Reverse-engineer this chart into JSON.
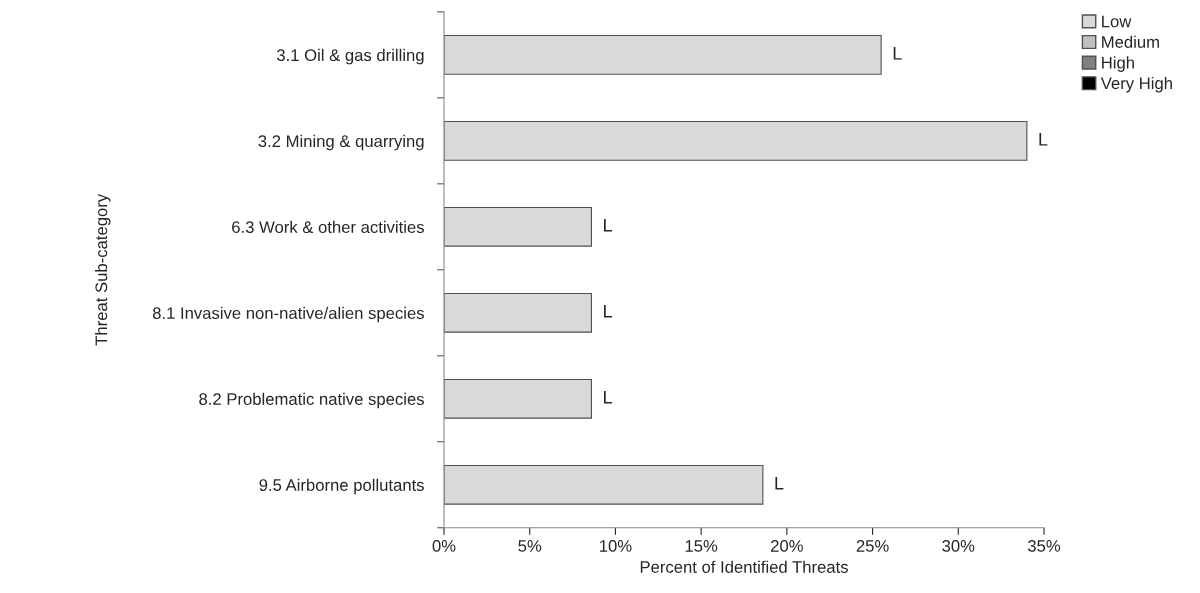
{
  "chart_data": {
    "type": "bar",
    "orientation": "horizontal",
    "categories": [
      "3.1 Oil & gas drilling",
      "3.2 Mining & quarrying",
      "6.3 Work & other activities",
      "8.1 Invasive non-native/alien species",
      "8.2 Problematic native species",
      "9.5 Airborne pollutants"
    ],
    "series": [
      {
        "name": "Low",
        "color": "#d9d9d9",
        "values": [
          25.5,
          34,
          8.6,
          8.6,
          8.6,
          18.6
        ],
        "value_labels": [
          "L",
          "L",
          "L",
          "L",
          "L",
          "L"
        ]
      },
      {
        "name": "Medium",
        "color": "#c0c0c0",
        "values": [
          null,
          null,
          null,
          null,
          null,
          null
        ]
      },
      {
        "name": "High",
        "color": "#808080",
        "values": [
          null,
          null,
          null,
          null,
          null,
          null
        ]
      },
      {
        "name": "Very High",
        "color": "#000000",
        "values": [
          null,
          null,
          null,
          null,
          null,
          null
        ]
      }
    ],
    "xlabel": "Percent of Identified Threats",
    "ylabel": "Threat Sub-category",
    "xlim": [
      0,
      35
    ],
    "xticks": [
      {
        "value": 0,
        "label": "0%"
      },
      {
        "value": 5,
        "label": "5%"
      },
      {
        "value": 10,
        "label": "10%"
      },
      {
        "value": 15,
        "label": "15%"
      },
      {
        "value": 20,
        "label": "20%"
      },
      {
        "value": 25,
        "label": "25%"
      },
      {
        "value": 30,
        "label": "30%"
      },
      {
        "value": 35,
        "label": "35%"
      }
    ],
    "grid": false,
    "legend": "top right"
  }
}
